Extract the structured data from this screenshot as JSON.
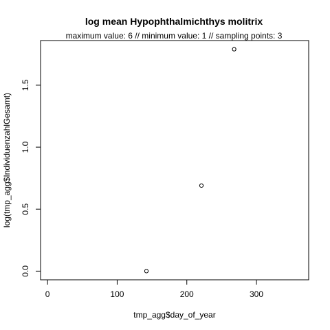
{
  "chart_data": {
    "type": "scatter",
    "title": "log mean Hypophthalmichthys molitrix",
    "subtitle": "maximum value: 6  //  minimum value: 1  // sampling points: 3",
    "xlabel": "tmp_agg$day_of_year",
    "ylabel": "log(tmp_agg$IndividuenzahlGesamt)",
    "xlim": [
      -10,
      375
    ],
    "ylim": [
      -0.07,
      1.86
    ],
    "x_ticks": [
      0,
      100,
      200,
      300
    ],
    "y_ticks": [
      0.0,
      0.5,
      1.0,
      1.5
    ],
    "x_tick_labels": [
      "0",
      "100",
      "200",
      "300"
    ],
    "y_tick_labels": [
      "0.0",
      "0.5",
      "1.0",
      "1.5"
    ],
    "points": [
      {
        "x": 142,
        "y": 0.0
      },
      {
        "x": 221,
        "y": 0.69
      },
      {
        "x": 268,
        "y": 1.79
      }
    ],
    "grid": false,
    "legend": "none"
  }
}
